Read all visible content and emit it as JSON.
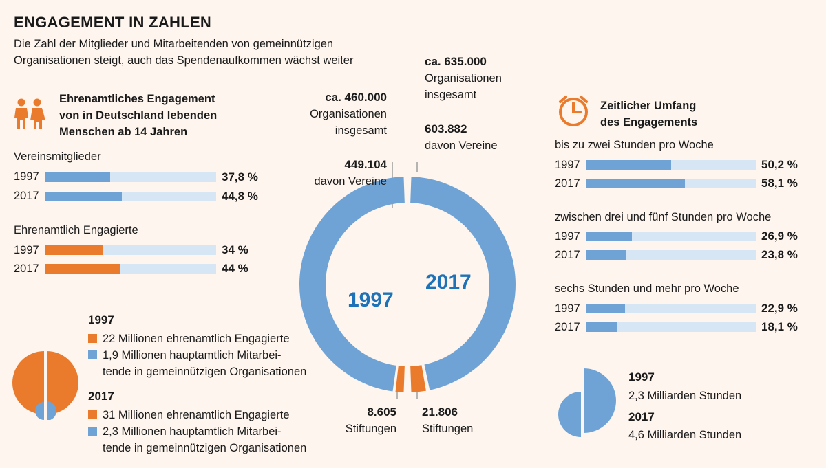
{
  "title": "ENGAGEMENT IN ZAHLEN",
  "subtitle_line1": "Die Zahl der Mitglieder und Mitarbeitenden von gemeinnützigen",
  "subtitle_line2": "Organisationen steigt, auch das Spendenaufkommen wächst weiter",
  "colors": {
    "blue": "#6fa3d6",
    "orange": "#ea7a2c",
    "track": "#d7e6f5",
    "accent_text": "#1d72b8"
  },
  "left": {
    "icon": "people-icon",
    "heading_line1": "Ehrenamtliches Engagement",
    "heading_line2": "von in Deutschland lebenden",
    "heading_line3": "Menschen ab 14 Jahren",
    "groups": [
      {
        "label": "Vereinsmitglieder",
        "rows": [
          {
            "year": "1997",
            "value_label": "37,8 %"
          },
          {
            "year": "2017",
            "value_label": "44,8 %"
          }
        ]
      },
      {
        "label": "Ehrenamtlich Engagierte",
        "rows": [
          {
            "year": "1997",
            "value_label": "34 %"
          },
          {
            "year": "2017",
            "value_label": "44 %"
          }
        ]
      }
    ],
    "legend": [
      {
        "year": "1997",
        "items": [
          "22 Millionen ehrenamtlich Engagierte",
          "1,9 Millionen hauptamtlich Mitarbei-",
          "tende in gemeinnützigen Organisationen"
        ]
      },
      {
        "year": "2017",
        "items": [
          "31 Millionen ehrenamtlich Engagierte",
          "2,3 Millionen hauptamtlich Mitarbei-",
          "tende in gemeinnützigen Organisationen"
        ]
      }
    ]
  },
  "center": {
    "label_1997": "1997",
    "label_2017": "2017",
    "a1997_total_value": "ca. 460.000",
    "a1997_total_l1": "Organisationen",
    "a1997_total_l2": "insgesamt",
    "a1997_vereine_value": "449.104",
    "a1997_vereine_label": "davon Vereine",
    "a1997_stift_value": "8.605",
    "a1997_stift_label": "Stiftungen",
    "a2017_total_value": "ca. 635.000",
    "a2017_total_l1": "Organisationen",
    "a2017_total_l2": "insgesamt",
    "a2017_vereine_value": "603.882",
    "a2017_vereine_label": "davon Vereine",
    "a2017_stift_value": "21.806",
    "a2017_stift_label": "Stiftungen"
  },
  "right": {
    "icon": "clock-icon",
    "heading_line1": "Zeitlicher Umfang",
    "heading_line2": "des Engagements",
    "groups": [
      {
        "label": "bis zu zwei Stunden pro Woche",
        "rows": [
          {
            "year": "1997",
            "value_label": "50,2 %"
          },
          {
            "year": "2017",
            "value_label": "58,1 %"
          }
        ]
      },
      {
        "label": "zwischen drei und fünf Stunden pro Woche",
        "rows": [
          {
            "year": "1997",
            "value_label": "26,9 %"
          },
          {
            "year": "2017",
            "value_label": "23,8 %"
          }
        ]
      },
      {
        "label": "sechs Stunden und mehr pro Woche",
        "rows": [
          {
            "year": "1997",
            "value_label": "22,9 %"
          },
          {
            "year": "2017",
            "value_label": "18,1 %"
          }
        ]
      }
    ],
    "legend": [
      {
        "year": "1997",
        "text": "2,3 Milliarden Stunden"
      },
      {
        "year": "2017",
        "text": "4,6 Milliarden Stunden"
      }
    ]
  },
  "chart_data": [
    {
      "type": "bar",
      "title": "Ehrenamtliches Engagement von in Deutschland lebenden Menschen ab 14 Jahren",
      "categories": [
        "Vereinsmitglieder 1997",
        "Vereinsmitglieder 2017",
        "Ehrenamtlich Engagierte 1997",
        "Ehrenamtlich Engagierte 2017"
      ],
      "values": [
        37.8,
        44.8,
        34,
        44
      ],
      "unit": "%",
      "ylim": [
        0,
        100
      ]
    },
    {
      "type": "bar",
      "title": "Zeitlicher Umfang des Engagements",
      "categories": [
        "bis zu zwei Stunden pro Woche",
        "zwischen drei und fünf Stunden pro Woche",
        "sechs Stunden und mehr pro Woche"
      ],
      "series": [
        {
          "name": "1997",
          "values": [
            50.2,
            26.9,
            22.9
          ]
        },
        {
          "name": "2017",
          "values": [
            58.1,
            23.8,
            18.1
          ]
        }
      ],
      "unit": "%",
      "ylim": [
        0,
        100
      ]
    },
    {
      "type": "pie",
      "categories": [
        "Vereine",
        "Stiftungen"
      ],
      "series": [
        {
          "name": "1997",
          "total": 460000,
          "values": [
            449104,
            8605
          ]
        },
        {
          "name": "2017",
          "total": 635000,
          "values": [
            603882,
            21806
          ]
        }
      ]
    },
    {
      "type": "pie",
      "categories": [
        "ehrenamtlich Engagierte",
        "hauptamtlich Mitarbeitende"
      ],
      "series": [
        {
          "name": "1997",
          "values": [
            22,
            1.9
          ]
        },
        {
          "name": "2017",
          "values": [
            31,
            2.3
          ]
        }
      ],
      "unit": "Millionen"
    },
    {
      "type": "pie",
      "categories": [
        "1997",
        "2017"
      ],
      "values": [
        2.3,
        4.6
      ],
      "unit": "Milliarden Stunden"
    }
  ]
}
